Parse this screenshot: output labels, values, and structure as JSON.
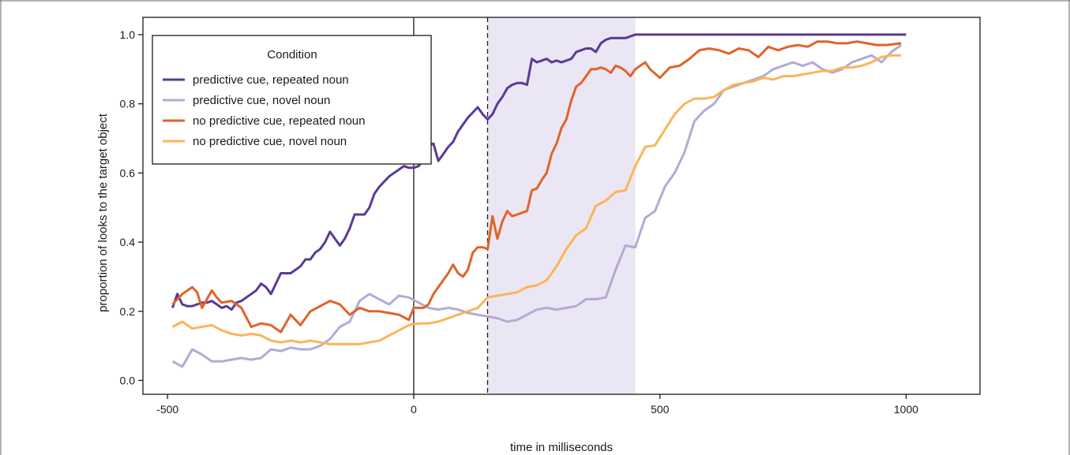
{
  "chart_data": {
    "type": "line",
    "xlabel": "time in milliseconds",
    "ylabel": "proportion of looks to the target object",
    "xlim": [
      -550,
      1150
    ],
    "ylim": [
      -0.04,
      1.05
    ],
    "xticks": [
      -500,
      0,
      500,
      1000
    ],
    "xtick_labels": [
      "-500",
      "0",
      "500",
      "1000"
    ],
    "yticks": [
      0.0,
      0.2,
      0.4,
      0.6,
      0.8,
      1.0
    ],
    "ytick_labels": [
      "0.0",
      "0.2",
      "0.4",
      "0.6",
      "0.8",
      "1.0"
    ],
    "grid": false,
    "legend": {
      "title": "Condition",
      "placement": "top-left"
    },
    "annotations": {
      "solid_vline_x": 0,
      "dashed_vline_x": 150,
      "shaded_region_x": [
        150,
        450
      ],
      "shaded_color": "#ebe6f3"
    },
    "series": [
      {
        "name": "predictive cue, repeated noun",
        "color": "#5a3a96",
        "x": [
          -490,
          -480,
          -470,
          -460,
          -450,
          -440,
          -430,
          -420,
          -410,
          -400,
          -390,
          -380,
          -370,
          -360,
          -350,
          -340,
          -330,
          -320,
          -310,
          -300,
          -290,
          -280,
          -270,
          -260,
          -250,
          -240,
          -230,
          -220,
          -210,
          -200,
          -190,
          -180,
          -170,
          -160,
          -150,
          -140,
          -130,
          -120,
          -110,
          -100,
          -90,
          -80,
          -70,
          -60,
          -50,
          -40,
          -30,
          -20,
          -10,
          0,
          10,
          20,
          30,
          40,
          50,
          60,
          70,
          80,
          90,
          100,
          110,
          120,
          130,
          140,
          150,
          160,
          170,
          180,
          190,
          200,
          210,
          220,
          230,
          240,
          250,
          260,
          270,
          280,
          290,
          300,
          310,
          320,
          330,
          340,
          350,
          360,
          370,
          380,
          390,
          400,
          410,
          420,
          430,
          440,
          450,
          460,
          470,
          480,
          490,
          500,
          510,
          520,
          530,
          540,
          550,
          560,
          570,
          580,
          590,
          600,
          700,
          800,
          900,
          1000
        ],
        "y": [
          0.21,
          0.25,
          0.22,
          0.215,
          0.215,
          0.22,
          0.225,
          0.225,
          0.23,
          0.22,
          0.21,
          0.215,
          0.205,
          0.225,
          0.23,
          0.24,
          0.25,
          0.26,
          0.28,
          0.27,
          0.25,
          0.28,
          0.31,
          0.31,
          0.31,
          0.32,
          0.33,
          0.35,
          0.35,
          0.37,
          0.38,
          0.4,
          0.43,
          0.41,
          0.39,
          0.41,
          0.44,
          0.48,
          0.48,
          0.48,
          0.5,
          0.54,
          0.56,
          0.575,
          0.59,
          0.6,
          0.61,
          0.62,
          0.615,
          0.615,
          0.62,
          0.64,
          0.68,
          0.685,
          0.635,
          0.655,
          0.675,
          0.69,
          0.72,
          0.74,
          0.76,
          0.775,
          0.79,
          0.77,
          0.755,
          0.77,
          0.8,
          0.82,
          0.845,
          0.855,
          0.86,
          0.86,
          0.855,
          0.93,
          0.92,
          0.925,
          0.93,
          0.92,
          0.925,
          0.92,
          0.925,
          0.93,
          0.95,
          0.955,
          0.96,
          0.96,
          0.95,
          0.975,
          0.985,
          0.99,
          0.99,
          0.99,
          0.99,
          0.995,
          1.0,
          1.0,
          1.0,
          1.0,
          1.0,
          1.0,
          1.0,
          1.0,
          1.0,
          1.0,
          1.0,
          1.0,
          1.0,
          1.0,
          1.0,
          1.0,
          1.0,
          1.0,
          1.0,
          1.0
        ]
      },
      {
        "name": "predictive cue, novel noun",
        "color": "#b3abd4",
        "x": [
          -490,
          -470,
          -450,
          -430,
          -410,
          -390,
          -370,
          -350,
          -330,
          -310,
          -290,
          -270,
          -250,
          -230,
          -210,
          -190,
          -170,
          -150,
          -130,
          -110,
          -90,
          -70,
          -50,
          -30,
          -10,
          10,
          30,
          50,
          70,
          90,
          110,
          130,
          150,
          170,
          190,
          210,
          230,
          250,
          270,
          290,
          310,
          330,
          350,
          370,
          390,
          410,
          430,
          450,
          470,
          490,
          510,
          530,
          550,
          570,
          590,
          610,
          630,
          650,
          670,
          690,
          710,
          730,
          750,
          770,
          790,
          810,
          830,
          850,
          870,
          890,
          910,
          930,
          950,
          970,
          990
        ],
        "y": [
          0.055,
          0.04,
          0.09,
          0.075,
          0.055,
          0.055,
          0.06,
          0.065,
          0.06,
          0.065,
          0.09,
          0.085,
          0.095,
          0.09,
          0.09,
          0.1,
          0.12,
          0.155,
          0.17,
          0.23,
          0.25,
          0.235,
          0.22,
          0.245,
          0.24,
          0.225,
          0.21,
          0.205,
          0.21,
          0.205,
          0.195,
          0.19,
          0.185,
          0.18,
          0.17,
          0.175,
          0.19,
          0.205,
          0.21,
          0.205,
          0.21,
          0.215,
          0.235,
          0.235,
          0.24,
          0.32,
          0.39,
          0.385,
          0.47,
          0.49,
          0.56,
          0.6,
          0.66,
          0.75,
          0.78,
          0.8,
          0.84,
          0.85,
          0.86,
          0.87,
          0.88,
          0.9,
          0.91,
          0.92,
          0.91,
          0.92,
          0.9,
          0.89,
          0.9,
          0.92,
          0.93,
          0.94,
          0.92,
          0.95,
          0.97
        ]
      },
      {
        "name": "no predictive cue, repeated noun",
        "color": "#e0632a",
        "x": [
          -490,
          -470,
          -450,
          -440,
          -430,
          -410,
          -400,
          -390,
          -370,
          -350,
          -330,
          -310,
          -290,
          -270,
          -250,
          -230,
          -210,
          -190,
          -170,
          -150,
          -130,
          -110,
          -90,
          -70,
          -50,
          -30,
          -10,
          0,
          10,
          20,
          30,
          40,
          50,
          60,
          70,
          80,
          90,
          100,
          110,
          120,
          130,
          140,
          150,
          160,
          170,
          180,
          190,
          200,
          210,
          220,
          230,
          240,
          250,
          260,
          270,
          280,
          290,
          300,
          310,
          320,
          330,
          340,
          350,
          360,
          370,
          380,
          390,
          400,
          410,
          420,
          430,
          440,
          450,
          460,
          470,
          480,
          500,
          520,
          540,
          560,
          580,
          600,
          620,
          640,
          660,
          680,
          700,
          720,
          740,
          760,
          780,
          800,
          820,
          840,
          860,
          880,
          900,
          920,
          940,
          960,
          990
        ],
        "y": [
          0.22,
          0.25,
          0.27,
          0.255,
          0.21,
          0.26,
          0.24,
          0.225,
          0.23,
          0.21,
          0.155,
          0.165,
          0.16,
          0.14,
          0.19,
          0.16,
          0.2,
          0.215,
          0.23,
          0.22,
          0.19,
          0.21,
          0.2,
          0.2,
          0.195,
          0.19,
          0.175,
          0.21,
          0.21,
          0.21,
          0.22,
          0.25,
          0.27,
          0.29,
          0.31,
          0.335,
          0.31,
          0.3,
          0.32,
          0.37,
          0.385,
          0.385,
          0.38,
          0.475,
          0.41,
          0.46,
          0.49,
          0.475,
          0.48,
          0.485,
          0.49,
          0.55,
          0.555,
          0.58,
          0.6,
          0.655,
          0.685,
          0.73,
          0.755,
          0.81,
          0.85,
          0.86,
          0.88,
          0.9,
          0.9,
          0.905,
          0.9,
          0.89,
          0.91,
          0.905,
          0.895,
          0.88,
          0.9,
          0.91,
          0.92,
          0.9,
          0.875,
          0.905,
          0.91,
          0.93,
          0.955,
          0.96,
          0.955,
          0.945,
          0.96,
          0.955,
          0.935,
          0.965,
          0.955,
          0.965,
          0.97,
          0.965,
          0.98,
          0.98,
          0.975,
          0.975,
          0.98,
          0.975,
          0.97,
          0.97,
          0.975
        ]
      },
      {
        "name": "no predictive cue, novel noun",
        "color": "#fbb45a",
        "x": [
          -490,
          -470,
          -450,
          -430,
          -410,
          -390,
          -370,
          -350,
          -330,
          -310,
          -290,
          -270,
          -250,
          -230,
          -210,
          -190,
          -170,
          -150,
          -130,
          -110,
          -90,
          -70,
          -50,
          -30,
          -10,
          10,
          30,
          50,
          70,
          90,
          110,
          130,
          150,
          170,
          190,
          210,
          230,
          250,
          270,
          290,
          310,
          330,
          350,
          370,
          390,
          410,
          430,
          450,
          470,
          490,
          510,
          530,
          550,
          570,
          590,
          610,
          630,
          650,
          670,
          690,
          710,
          730,
          750,
          770,
          790,
          810,
          830,
          850,
          870,
          890,
          910,
          930,
          950,
          970,
          990
        ],
        "y": [
          0.155,
          0.17,
          0.15,
          0.155,
          0.16,
          0.145,
          0.135,
          0.13,
          0.135,
          0.13,
          0.115,
          0.11,
          0.115,
          0.11,
          0.115,
          0.11,
          0.105,
          0.105,
          0.105,
          0.105,
          0.11,
          0.115,
          0.13,
          0.145,
          0.16,
          0.165,
          0.165,
          0.17,
          0.18,
          0.19,
          0.2,
          0.21,
          0.24,
          0.245,
          0.25,
          0.255,
          0.27,
          0.275,
          0.29,
          0.33,
          0.38,
          0.42,
          0.44,
          0.505,
          0.52,
          0.545,
          0.55,
          0.62,
          0.675,
          0.68,
          0.725,
          0.77,
          0.8,
          0.815,
          0.815,
          0.82,
          0.84,
          0.855,
          0.86,
          0.865,
          0.875,
          0.87,
          0.88,
          0.88,
          0.885,
          0.89,
          0.895,
          0.895,
          0.905,
          0.905,
          0.91,
          0.92,
          0.935,
          0.94,
          0.94
        ]
      }
    ]
  }
}
